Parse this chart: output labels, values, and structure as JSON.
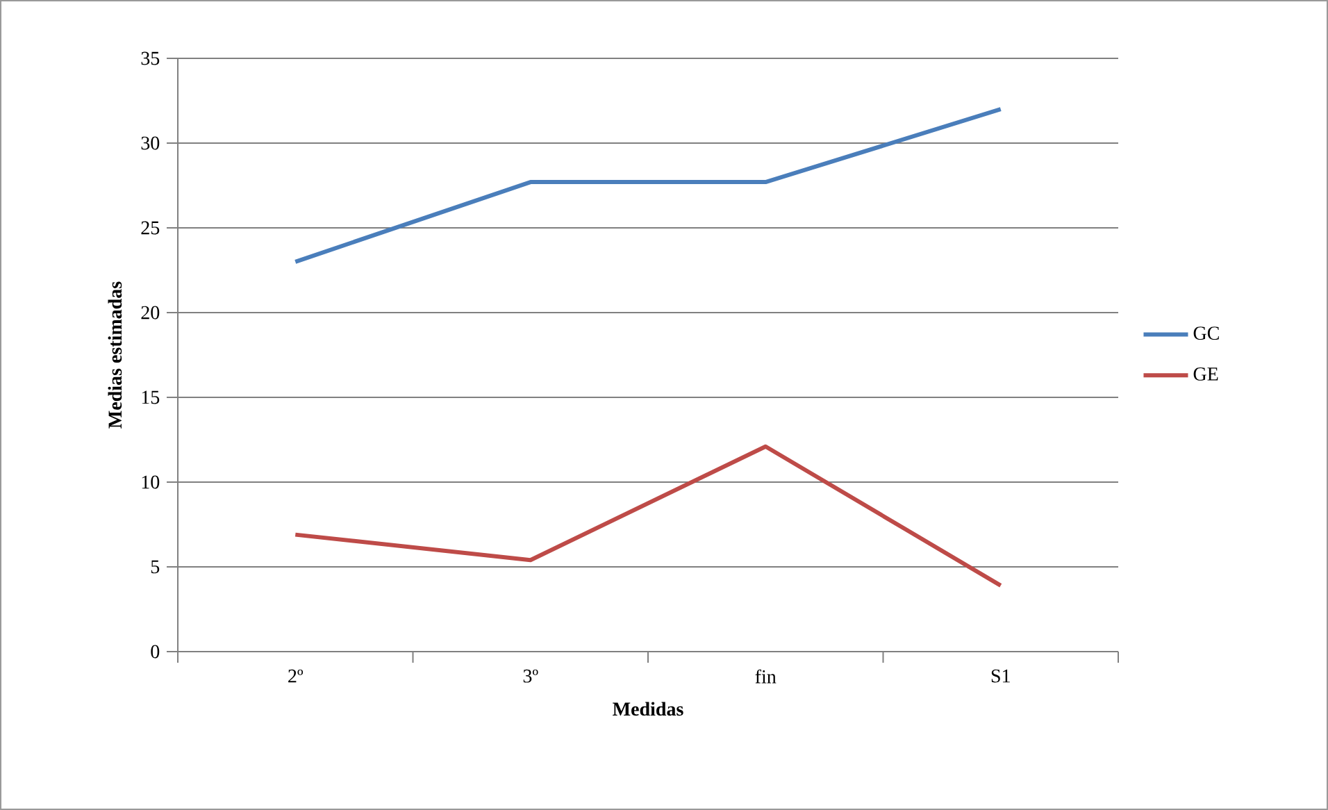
{
  "chart_data": {
    "type": "line",
    "xlabel": "Medidas",
    "ylabel": "Medias estimadas",
    "categories": [
      "2º",
      "3º",
      "fin",
      "S1"
    ],
    "series": [
      {
        "name": "GC",
        "color": "#4a7ebb",
        "values": [
          23.0,
          27.7,
          27.7,
          32.0
        ]
      },
      {
        "name": "GE",
        "color": "#be4b48",
        "values": [
          6.9,
          5.4,
          12.1,
          3.9
        ]
      }
    ],
    "ylim": [
      0,
      35
    ],
    "yticks": [
      0,
      5,
      10,
      15,
      20,
      25,
      30,
      35
    ],
    "grid": "y",
    "legend": "right"
  }
}
